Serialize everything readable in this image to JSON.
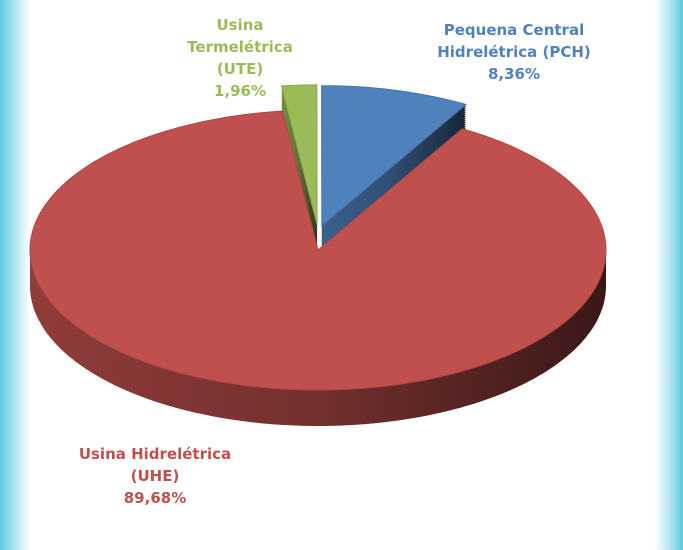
{
  "chart_data": {
    "type": "pie",
    "categories": [
      "Usina Termelétrica (UTE)",
      "Pequena Central Hidrelétrica (PCH)",
      "Usina Hidrelétrica (UHE)"
    ],
    "values": [
      1.96,
      8.36,
      89.68
    ],
    "value_labels": [
      "1,96%",
      "8,36%",
      "89,68%"
    ],
    "colors": [
      "#9bbb59",
      "#4f81bd",
      "#c0504d"
    ]
  }
}
